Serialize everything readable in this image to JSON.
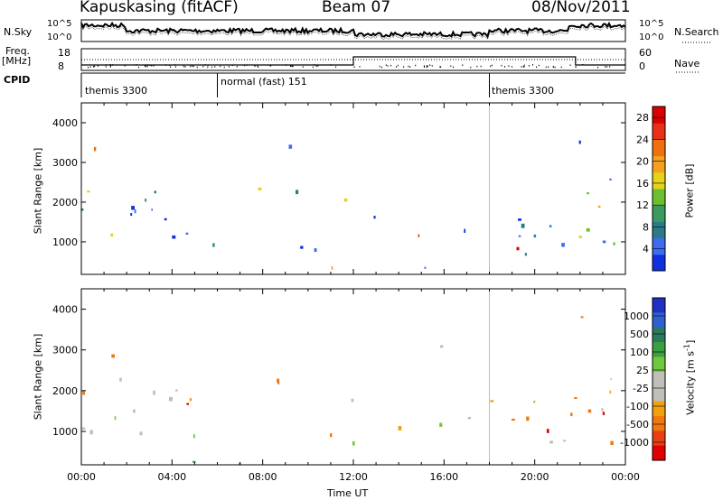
{
  "header": {
    "station": "Kapuskasing (fitACF)",
    "beam": "Beam 07",
    "date": "08/Nov/2011"
  },
  "strip_labels": {
    "nsky": "N.Sky",
    "nsky_ticks": [
      "10^5",
      "10^0"
    ],
    "nsearch": "N.Search",
    "freq": "Freq.",
    "freq_unit": "[MHz]",
    "freq_ticks": [
      "18",
      "8"
    ],
    "nave": "Nave",
    "nave_ticks": [
      "60",
      "0"
    ],
    "cpid": "CPID"
  },
  "cpid_segments": [
    {
      "label": "themis 3300",
      "start_hour": 0
    },
    {
      "label": "normal (fast) 151",
      "start_hour": 6
    },
    {
      "label": "themis 3300",
      "start_hour": 18
    }
  ],
  "chart_data": [
    {
      "type": "heatmap",
      "panel": "power",
      "ylabel": "Slant Range [km]",
      "xlim": [
        0,
        24
      ],
      "ylim": [
        180,
        4500
      ],
      "y_ticks": [
        1000,
        2000,
        3000,
        4000
      ],
      "colorbar": {
        "label": "Power [dB]",
        "ticks": [
          4,
          8,
          12,
          16,
          20,
          24,
          28
        ],
        "range": [
          0,
          30
        ],
        "colors": [
          "#1030e0",
          "#3d6cf0",
          "#2a7a88",
          "#3a9a60",
          "#6cc030",
          "#e6d21c",
          "#f5a020",
          "#f07010",
          "#e83018",
          "#d80000"
        ]
      }
    },
    {
      "type": "heatmap",
      "panel": "velocity",
      "ylabel": "Slant Range [km]",
      "xlabel": "Time UT",
      "xlim": [
        0,
        24
      ],
      "ylim": [
        180,
        4500
      ],
      "y_ticks": [
        1000,
        2000,
        3000,
        4000
      ],
      "x_ticks": [
        "00:00",
        "04:00",
        "08:00",
        "12:00",
        "16:00",
        "20:00",
        "00:00"
      ],
      "colorbar": {
        "label": "Velocity [m s",
        "label_sup": "-1",
        "label_end": "]",
        "ticks": [
          "1000",
          "500",
          "100",
          "25",
          "-25",
          "-100",
          "-500",
          "-1000"
        ],
        "colors": [
          "#2030c0",
          "#3060d0",
          "#2a7a60",
          "#3aa040",
          "#70c840",
          "#c0c0b8",
          "#c0c0b8",
          "#f0a010",
          "#f07810",
          "#e84010",
          "#e00000"
        ]
      }
    }
  ]
}
